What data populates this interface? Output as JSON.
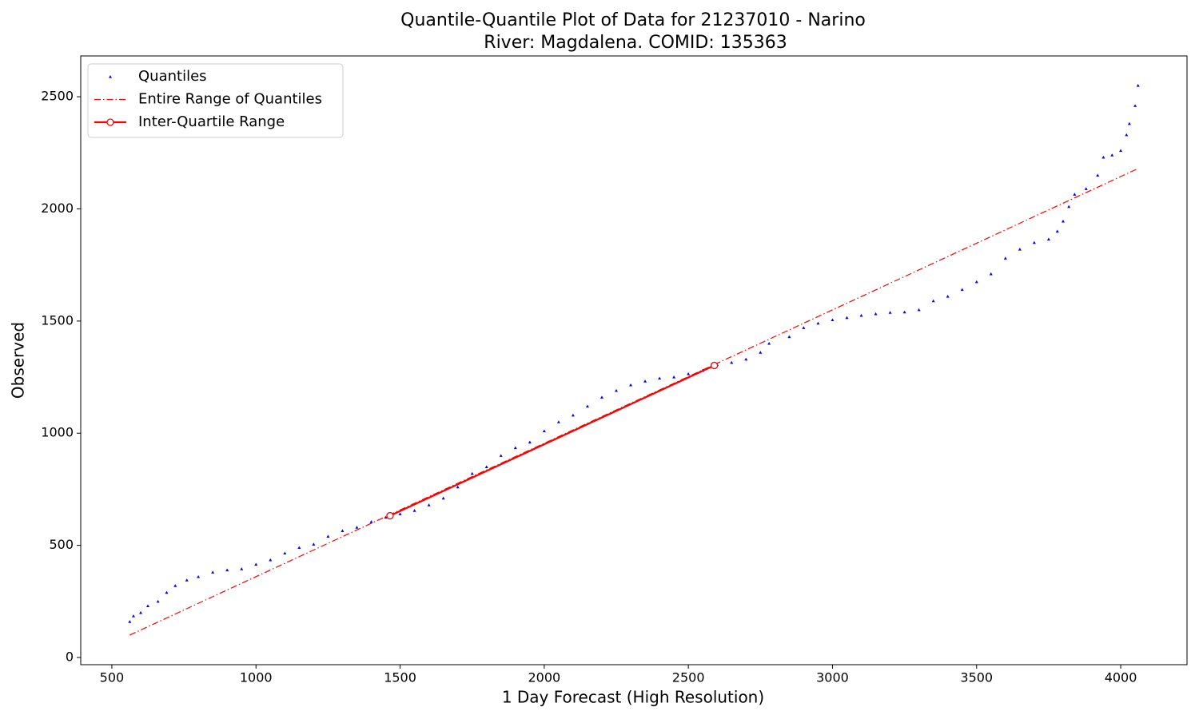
{
  "chart_data": {
    "type": "scatter",
    "title": "Quantile-Quantile Plot of Data for 21237010 - Narino",
    "subtitle": "River: Magdalena. COMID: 135363",
    "xlabel": "1 Day Forecast (High Resolution)",
    "ylabel": "Observed",
    "xlim": [
      392,
      4230
    ],
    "ylim": [
      -32,
      2682
    ],
    "xticks": [
      500,
      1000,
      1500,
      2000,
      2500,
      3000,
      3500,
      4000
    ],
    "yticks": [
      0,
      500,
      1000,
      1500,
      2000,
      2500
    ],
    "legend": "upper left",
    "series": [
      {
        "name": "Quantiles",
        "color": "#0000ff",
        "kind": "points",
        "marker": "triangle",
        "x": [
          562,
          575,
          600,
          625,
          660,
          690,
          720,
          760,
          800,
          850,
          900,
          950,
          1000,
          1050,
          1100,
          1150,
          1200,
          1250,
          1300,
          1350,
          1400,
          1450,
          1500,
          1550,
          1600,
          1650,
          1700,
          1750,
          1800,
          1850,
          1900,
          1950,
          2000,
          2050,
          2100,
          2150,
          2200,
          2250,
          2300,
          2350,
          2400,
          2450,
          2500,
          2550,
          2600,
          2650,
          2700,
          2750,
          2780,
          2850,
          2900,
          2950,
          3000,
          3050,
          3100,
          3150,
          3200,
          3250,
          3300,
          3350,
          3400,
          3450,
          3500,
          3550,
          3600,
          3650,
          3700,
          3750,
          3780,
          3800,
          3820,
          3840,
          3880,
          3920,
          3940,
          3970,
          4000,
          4020,
          4030,
          4050,
          4060
        ],
        "y": [
          160,
          185,
          200,
          230,
          250,
          290,
          320,
          345,
          360,
          380,
          390,
          395,
          415,
          435,
          465,
          490,
          505,
          540,
          565,
          580,
          605,
          625,
          640,
          655,
          680,
          710,
          760,
          820,
          850,
          900,
          935,
          960,
          1010,
          1050,
          1080,
          1120,
          1160,
          1190,
          1215,
          1232,
          1245,
          1250,
          1265,
          1280,
          1305,
          1315,
          1330,
          1360,
          1400,
          1430,
          1470,
          1490,
          1505,
          1515,
          1525,
          1532,
          1538,
          1540,
          1550,
          1590,
          1610,
          1640,
          1675,
          1710,
          1780,
          1820,
          1850,
          1865,
          1900,
          1945,
          2010,
          2065,
          2090,
          2150,
          2230,
          2240,
          2260,
          2330,
          2380,
          2460,
          2550
        ]
      },
      {
        "name": "Entire Range of Quantiles",
        "color": "#ff0000",
        "kind": "line",
        "linestyle": "dashdot",
        "x": [
          562,
          4060
        ],
        "y": [
          100,
          2180
        ]
      },
      {
        "name": "Inter-Quartile Range",
        "color": "#ff0000",
        "kind": "line",
        "linestyle": "solid",
        "marker": "circle",
        "x": [
          1465,
          2590
        ],
        "y": [
          632,
          1302
        ]
      }
    ]
  }
}
